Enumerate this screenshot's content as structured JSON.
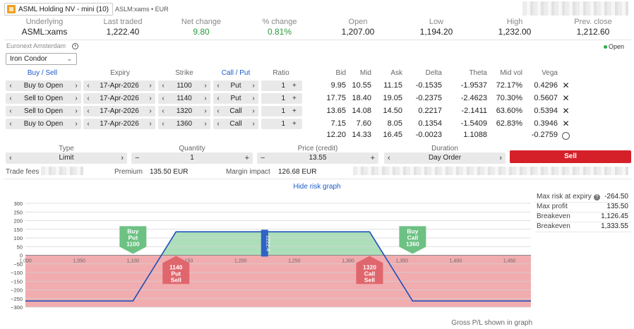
{
  "header": {
    "instrument_label": "ASML Holding NV - mini (10)",
    "sub_label": "ASLM:xams • EUR"
  },
  "quote": [
    {
      "label": "Underlying",
      "value": "ASML:xams",
      "tone": "neutral"
    },
    {
      "label": "Last traded",
      "value": "1,222.40",
      "tone": "neutral"
    },
    {
      "label": "Net change",
      "value": "9.80",
      "tone": "up"
    },
    {
      "label": "% change",
      "value": "0.81%",
      "tone": "up"
    },
    {
      "label": "Open",
      "value": "1,207.00",
      "tone": "neutral"
    },
    {
      "label": "Low",
      "value": "1,194.20",
      "tone": "neutral"
    },
    {
      "label": "High",
      "value": "1,232.00",
      "tone": "neutral"
    },
    {
      "label": "Prev. close",
      "value": "1,212.60",
      "tone": "neutral"
    }
  ],
  "exchange": "Euronext Amsterdam",
  "market_status": "Open",
  "strategy": {
    "selected": "Iron Condor"
  },
  "legs_headers": {
    "buy_sell": "Buy / Sell",
    "expiry": "Expiry",
    "strike": "Strike",
    "call_put": "Call / Put",
    "ratio": "Ratio",
    "bid": "Bid",
    "mid": "Mid",
    "ask": "Ask",
    "delta": "Delta",
    "theta": "Theta",
    "mid_vol": "Mid vol",
    "vega": "Vega"
  },
  "legs": [
    {
      "side": "Buy to Open",
      "expiry": "17-Apr-2026",
      "strike": "1100",
      "type": "Put",
      "ratio": "1",
      "bid": "9.95",
      "mid": "10.55",
      "ask": "11.15",
      "delta": "-0.1535",
      "theta": "-1.9537",
      "mid_vol": "72.17%",
      "vega": "0.4296"
    },
    {
      "side": "Sell to Open",
      "expiry": "17-Apr-2026",
      "strike": "1140",
      "type": "Put",
      "ratio": "1",
      "bid": "17.75",
      "mid": "18.40",
      "ask": "19.05",
      "delta": "-0.2375",
      "theta": "-2.4623",
      "mid_vol": "70.30%",
      "vega": "0.5607"
    },
    {
      "side": "Sell to Open",
      "expiry": "17-Apr-2026",
      "strike": "1320",
      "type": "Call",
      "ratio": "1",
      "bid": "13.65",
      "mid": "14.08",
      "ask": "14.50",
      "delta": "0.2217",
      "theta": "-2.1411",
      "mid_vol": "63.60%",
      "vega": "0.5394"
    },
    {
      "side": "Buy to Open",
      "expiry": "17-Apr-2026",
      "strike": "1360",
      "type": "Call",
      "ratio": "1",
      "bid": "7.15",
      "mid": "7.60",
      "ask": "8.05",
      "delta": "0.1354",
      "theta": "-1.5409",
      "mid_vol": "62.83%",
      "vega": "0.3946"
    }
  ],
  "totals": {
    "bid": "12.20",
    "mid": "14.33",
    "ask": "16.45",
    "delta": "-0.0023",
    "theta": "1.1088",
    "vega": "-0.2759"
  },
  "order": {
    "type_label": "Type",
    "type_value": "Limit",
    "quantity_label": "Quantity",
    "quantity_value": "1",
    "price_label": "Price (credit)",
    "price_value": "13.55",
    "duration_label": "Duration",
    "duration_value": "Day Order",
    "submit_label": "Sell"
  },
  "fees": {
    "trade_fees_label": "Trade fees",
    "premium_label": "Premium",
    "premium_value": "135.50 EUR",
    "margin_label": "Margin impact",
    "margin_value": "126.68 EUR"
  },
  "risk_toggle_label": "Hide risk graph",
  "risk_stats": [
    {
      "label": "Max risk at expiry",
      "value": "-264.50"
    },
    {
      "label": "Max profit",
      "value": "135.50"
    },
    {
      "label": "Breakeven",
      "value": "1,126.45"
    },
    {
      "label": "Breakeven",
      "value": "1,333.55"
    }
  ],
  "footnote": "Gross P/L shown in graph",
  "colors": {
    "accent_blue": "#1c5bc8",
    "sell_red": "#d5202a",
    "profit_green": "#9fd8ae",
    "loss_red": "#f0a3a6",
    "up_green": "#2a9a3a"
  },
  "chart_data": {
    "type": "area",
    "x": [
      1000,
      1100,
      1140,
      1320,
      1360,
      1470
    ],
    "y": [
      -264.5,
      -264.5,
      135.5,
      135.5,
      -264.5,
      -264.5
    ],
    "xlim": [
      1000,
      1470
    ],
    "ylim": [
      -300,
      300
    ],
    "y_ticks": [
      300,
      250,
      200,
      150,
      100,
      50,
      0,
      -50,
      -100,
      -150,
      -200,
      -250,
      -300
    ],
    "y_tick_labels": [
      "300",
      "250",
      "200",
      "150",
      "100",
      "50",
      "0",
      "−50",
      "−100",
      "−150",
      "−200",
      "−250",
      "−300"
    ],
    "x_ticks": [
      1000,
      1050,
      1100,
      1150,
      1200,
      1250,
      1300,
      1350,
      1400,
      1450
    ],
    "x_tick_labels": [
      "1,000",
      "1,050",
      "1,100",
      "1,150",
      "1,200",
      "1,250",
      "1,300",
      "1,350",
      "1,400",
      "1,450"
    ],
    "current_price": 1222.4,
    "current_price_label": "1222.4",
    "markers": [
      {
        "strike": 1100,
        "label": [
          "Buy",
          "Put",
          "1100"
        ],
        "kind": "buy"
      },
      {
        "strike": 1140,
        "label": [
          "1140",
          "Put",
          "Sell"
        ],
        "kind": "sell"
      },
      {
        "strike": 1320,
        "label": [
          "1320",
          "Call",
          "Sell"
        ],
        "kind": "sell"
      },
      {
        "strike": 1360,
        "label": [
          "Buy",
          "Call",
          "1360"
        ],
        "kind": "buy"
      }
    ],
    "grid": true
  }
}
